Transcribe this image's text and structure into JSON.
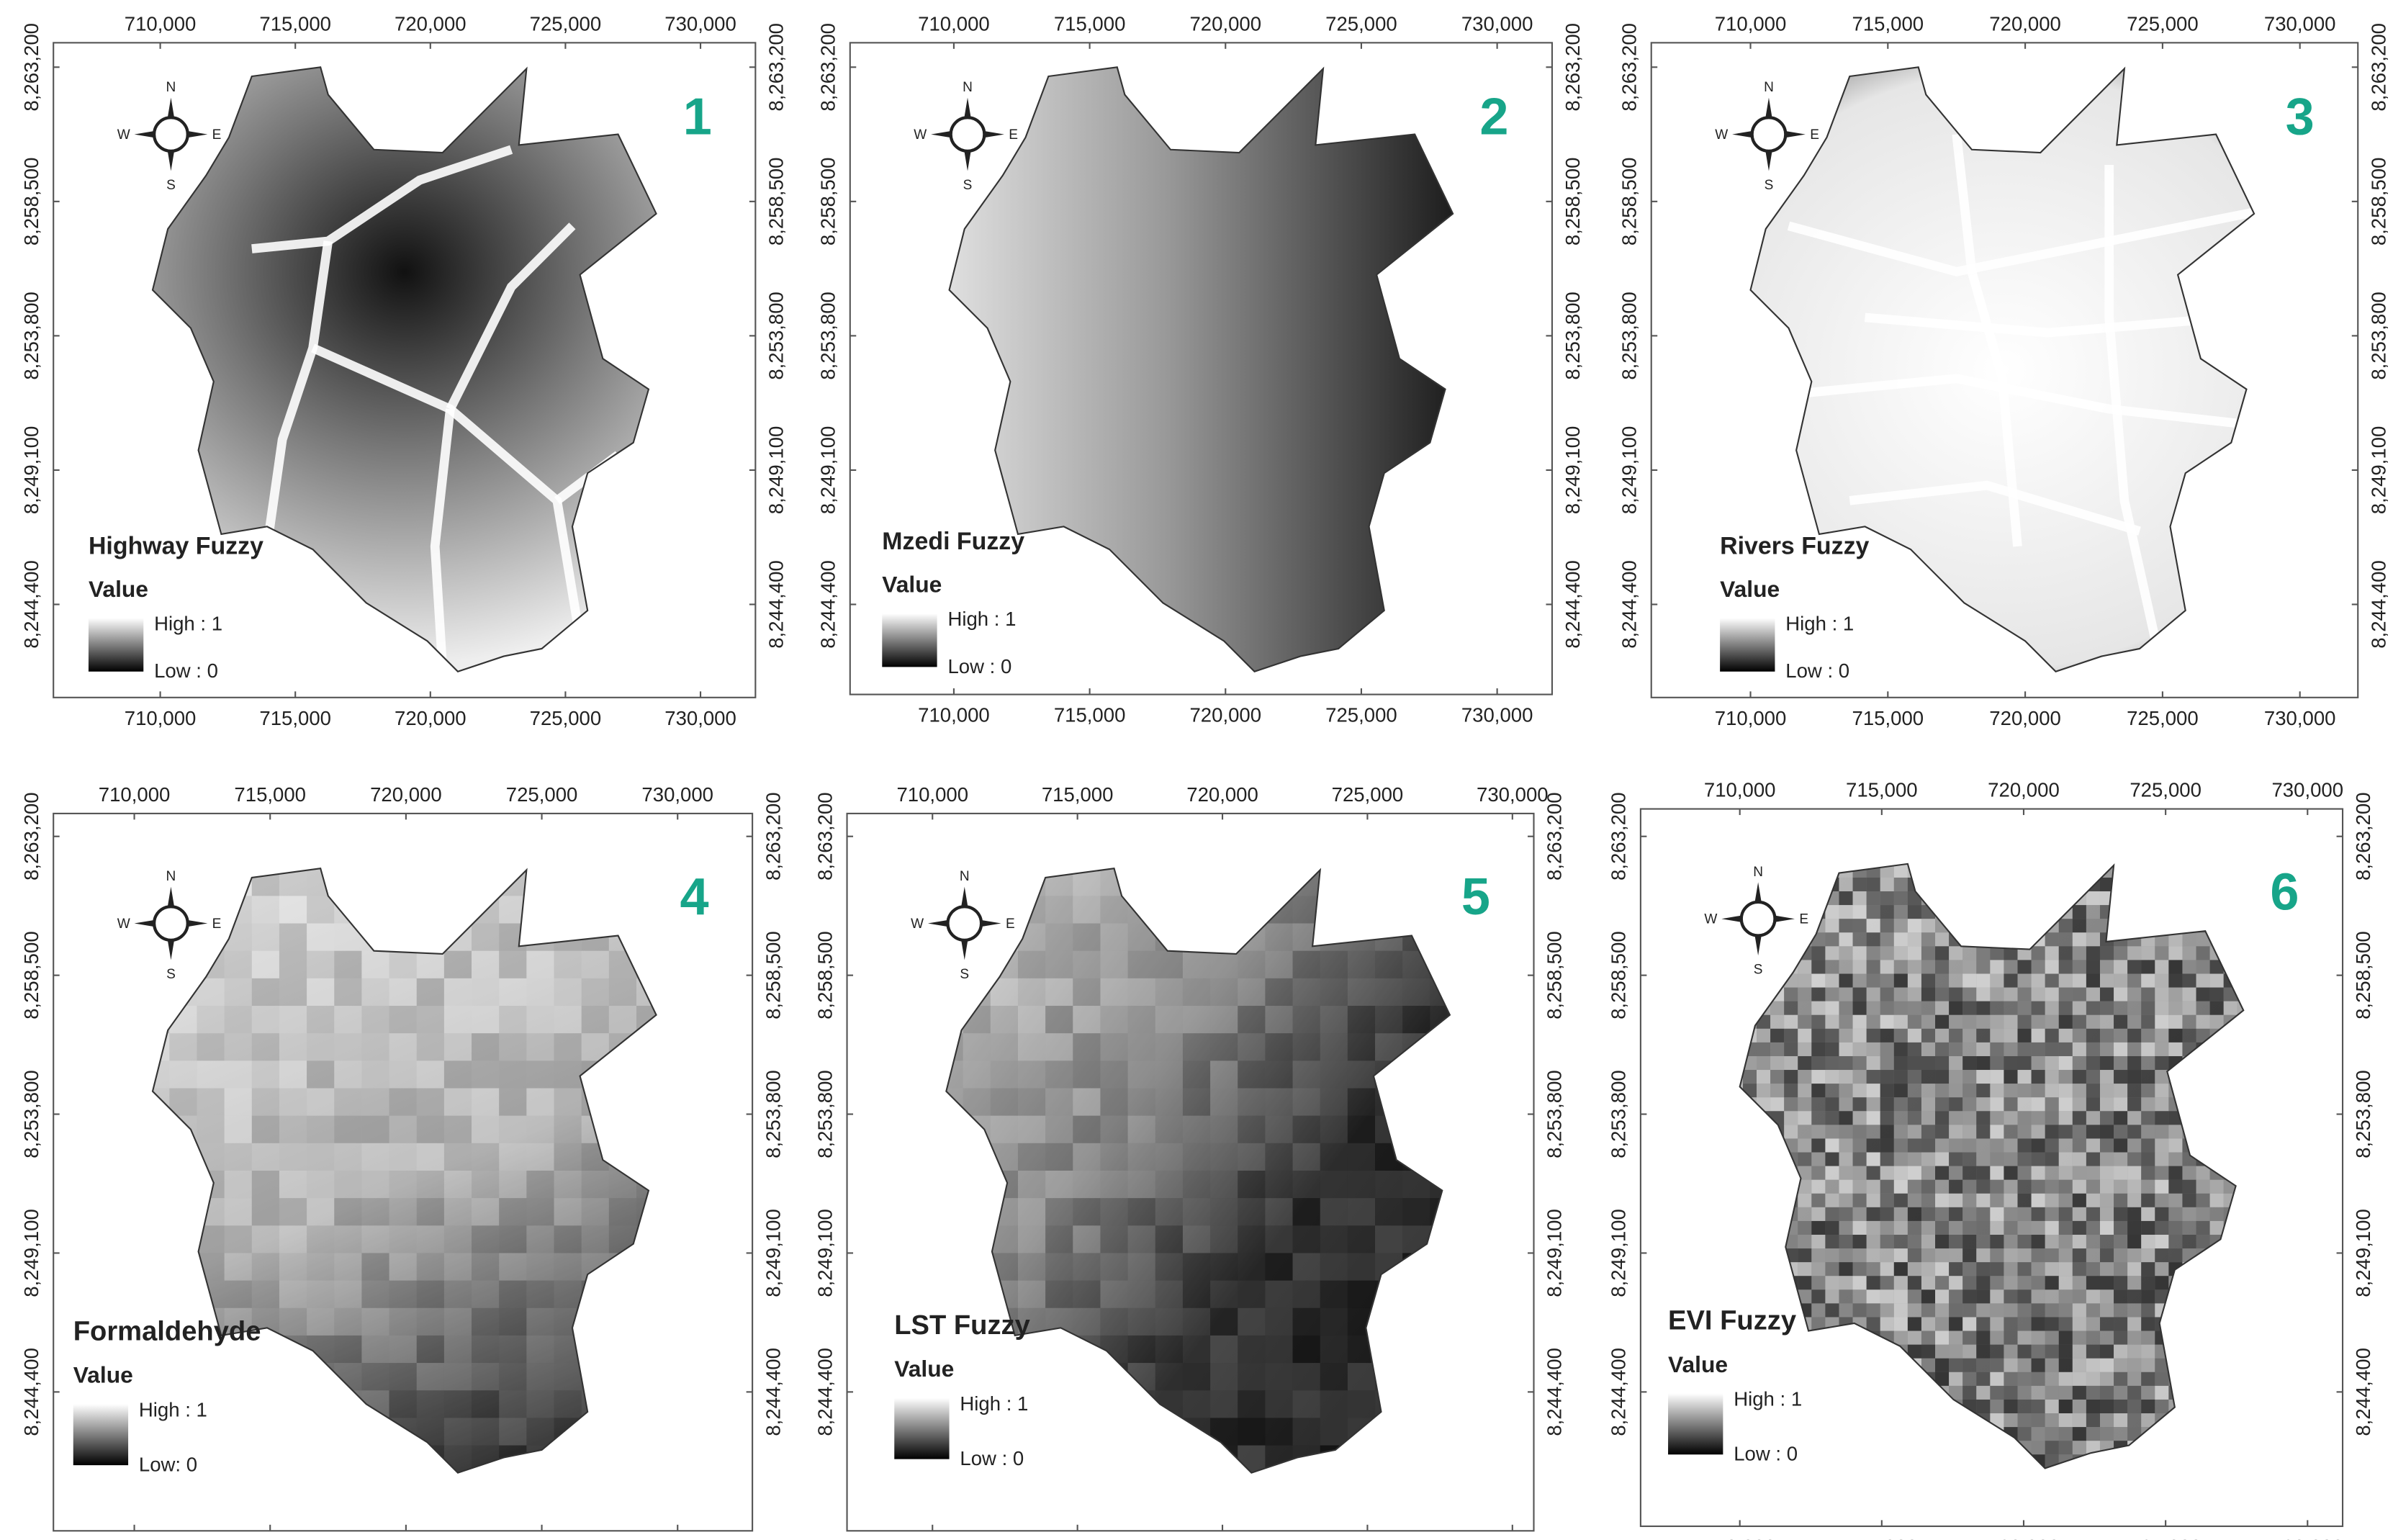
{
  "panels": [
    {
      "number": "1",
      "title": "Highway Fuzzy",
      "legend_title": "Value",
      "legend_high": "High : 1",
      "legend_low": "Low : 0"
    },
    {
      "number": "2",
      "title": "Mzedi Fuzzy",
      "legend_title": "Value",
      "legend_high": "High : 1",
      "legend_low": "Low : 0"
    },
    {
      "number": "3",
      "title": "Rivers Fuzzy",
      "legend_title": "Value",
      "legend_high": "High : 1",
      "legend_low": "Low : 0"
    },
    {
      "number": "4",
      "title": "Formaldehyde",
      "legend_title": "Value",
      "legend_high": "High : 1",
      "legend_low": "Low:  0"
    },
    {
      "number": "5",
      "title": "LST Fuzzy",
      "legend_title": "Value",
      "legend_high": "High : 1",
      "legend_low": "Low : 0"
    },
    {
      "number": "6",
      "title": "EVI Fuzzy",
      "legend_title": "Value",
      "legend_high": "High : 1",
      "legend_low": "Low : 0"
    }
  ],
  "compass": {
    "n": "N",
    "s": "S",
    "e": "E",
    "w": "W"
  },
  "x_tick_labels": [
    "710,000",
    "715,000",
    "720,000",
    "725,000",
    "730,000"
  ],
  "y_tick_labels": [
    "8,263,200",
    "8,258,500",
    "8,253,800",
    "8,249,100",
    "8,244,400"
  ]
}
